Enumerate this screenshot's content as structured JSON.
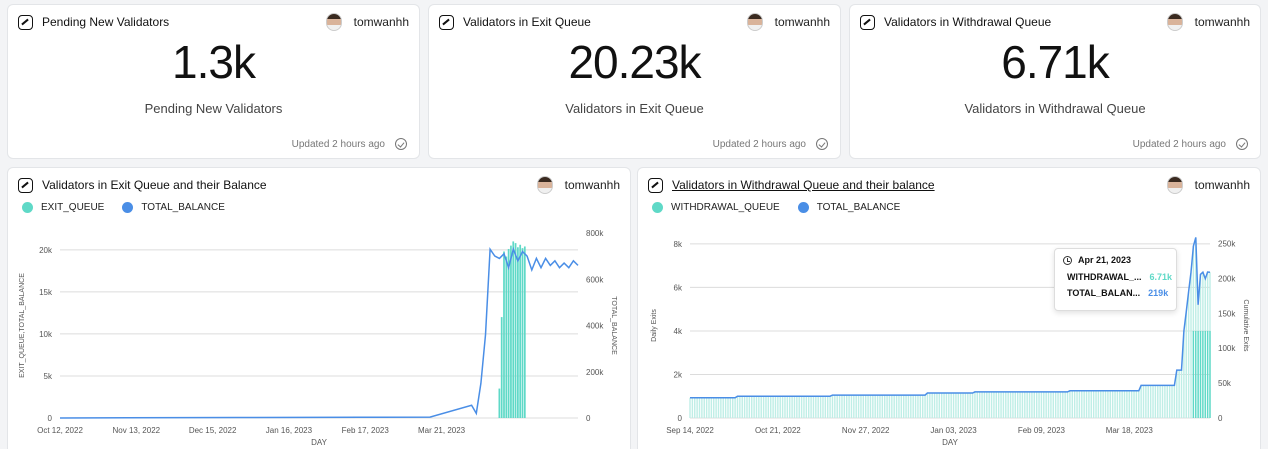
{
  "colors": {
    "exit": "#5fd9c7",
    "balance": "#4a8ee6",
    "grid": "#dcdcdc",
    "axis": "#555"
  },
  "stats": [
    {
      "title": "Pending New Validators",
      "owner": "tomwanhh",
      "value": "1.3k",
      "label": "Pending New Validators",
      "updated": "Updated 2 hours ago"
    },
    {
      "title": "Validators in Exit Queue",
      "owner": "tomwanhh",
      "value": "20.23k",
      "label": "Validators in Exit Queue",
      "updated": "Updated 2 hours ago"
    },
    {
      "title": "Validators in Withdrawal Queue",
      "owner": "tomwanhh",
      "value": "6.71k",
      "label": "Validators in Withdrawal Queue",
      "updated": "Updated 2 hours ago"
    }
  ],
  "charts": [
    {
      "title": "Validators in Exit Queue and their Balance",
      "owner": "tomwanhh",
      "legend": [
        "EXIT_QUEUE",
        "TOTAL_BALANCE"
      ]
    },
    {
      "title": "Validators in Withdrawal Queue and their balance",
      "owner": "tomwanhh",
      "legend": [
        "WITHDRAWAL_QUEUE",
        "TOTAL_BALANCE"
      ],
      "tooltip": {
        "date": "Apr 21, 2023",
        "rows": [
          {
            "name": "WITHDRAWAL_...",
            "value": "6.71k"
          },
          {
            "name": "TOTAL_BALAN...",
            "value": "219k"
          }
        ]
      }
    }
  ],
  "chart_data": [
    {
      "type": "bar",
      "title": "Validators in Exit Queue and their Balance",
      "xlabel": "DAY",
      "ylabel": "EXIT_QUEUE,TOTAL_BALANCE",
      "y2label": "TOTAL_BALANCE",
      "x_ticks": [
        "Oct 12, 2022",
        "Nov 13, 2022",
        "Dec 15, 2022",
        "Jan 16, 2023",
        "Feb 17, 2023",
        "Mar 21, 2023"
      ],
      "y_ticks": [
        "0",
        "5k",
        "10k",
        "15k",
        "20k"
      ],
      "y2_ticks": [
        "0",
        "200k",
        "400k",
        "600k",
        "800k"
      ],
      "ylim": [
        0,
        22000
      ],
      "y2lim": [
        0,
        800000
      ],
      "series": [
        {
          "name": "EXIT_QUEUE",
          "type": "bar",
          "axis": "left",
          "values": [
            0,
            0,
            0,
            0,
            0,
            0,
            0,
            0,
            0,
            0,
            0,
            0,
            0,
            0,
            0,
            0,
            0,
            0,
            0,
            0,
            0,
            0,
            0,
            0,
            0,
            0,
            0,
            0,
            0,
            0,
            0,
            0,
            0,
            0,
            0,
            0,
            0,
            0,
            0,
            0,
            0,
            0,
            0,
            0,
            0,
            0,
            0,
            0,
            0,
            0,
            0,
            0,
            0,
            0,
            0,
            0,
            0,
            0,
            0,
            0,
            0,
            0,
            0,
            0,
            0,
            0,
            0,
            0,
            0,
            0,
            0,
            0,
            0,
            0,
            0,
            0,
            0,
            0,
            0,
            0,
            0,
            0,
            0,
            0,
            0,
            0,
            0,
            0,
            0,
            0,
            0,
            0,
            0,
            0,
            0,
            0,
            0,
            0,
            0,
            0,
            0,
            0,
            0,
            0,
            0,
            0,
            0,
            0,
            0,
            0,
            0,
            0,
            0,
            0,
            0,
            0,
            0,
            0,
            0,
            0,
            0,
            0,
            0,
            0,
            0,
            0,
            0,
            0,
            0,
            0,
            0,
            0,
            0,
            0,
            0,
            0,
            0,
            0,
            0,
            0,
            0,
            0,
            0,
            0,
            0,
            0,
            0,
            0,
            0,
            0,
            0,
            0,
            0,
            0,
            0,
            0,
            0,
            0,
            0,
            0,
            0,
            0,
            0,
            0,
            0,
            0,
            0,
            0,
            0,
            0,
            0,
            0,
            0,
            0,
            0,
            0,
            0,
            0,
            0,
            0,
            0,
            0,
            0,
            0,
            0,
            0,
            0,
            0,
            0,
            0,
            3500,
            12000,
            19800,
            19200,
            20100,
            20500,
            21000,
            20800,
            20300,
            20600,
            20200,
            20400
          ]
        },
        {
          "name": "TOTAL_BALANCE",
          "type": "line",
          "axis": "right",
          "points": [
            [
              0,
              0
            ],
            [
              76,
              2000
            ],
            [
              130,
              3000
            ],
            [
              160,
              4000
            ],
            [
              178,
              55000
            ],
            [
              180,
              20000
            ],
            [
              182,
              150000
            ],
            [
              184,
              360000
            ],
            [
              186,
              730000
            ],
            [
              188,
              700000
            ],
            [
              190,
              690000
            ],
            [
              192,
              710000
            ],
            [
              194,
              650000
            ],
            [
              196,
              730000
            ],
            [
              198,
              680000
            ],
            [
              200,
              720000
            ],
            [
              202,
              700000
            ],
            [
              204,
              640000
            ],
            [
              206,
              690000
            ],
            [
              208,
              650000
            ],
            [
              210,
              690000
            ],
            [
              212,
              660000
            ],
            [
              214,
              680000
            ],
            [
              216,
              650000
            ],
            [
              218,
              670000
            ],
            [
              220,
              650000
            ],
            [
              222,
              680000
            ],
            [
              224,
              660000
            ]
          ]
        }
      ]
    },
    {
      "type": "bar",
      "title": "Validators in Withdrawal Queue and their balance",
      "xlabel": "DAY",
      "ylabel": "Daily Exits",
      "y2label": "Cumulative Exits",
      "x_ticks": [
        "Sep 14, 2022",
        "Oct 21, 2022",
        "Nov 27, 2022",
        "Jan 03, 2023",
        "Feb 09, 2023",
        "Mar 18, 2023"
      ],
      "y_ticks": [
        "0",
        "2k",
        "4k",
        "6k",
        "8k"
      ],
      "y2_ticks": [
        "0",
        "50k",
        "100k",
        "150k",
        "200k",
        "250k"
      ],
      "ylim": [
        0,
        8500
      ],
      "y2lim": [
        0,
        265000
      ],
      "series": [
        {
          "name": "WITHDRAWAL_QUEUE",
          "type": "bar",
          "axis": "left"
        },
        {
          "name": "TOTAL_BALANCE",
          "type": "line",
          "axis": "right"
        }
      ]
    }
  ]
}
